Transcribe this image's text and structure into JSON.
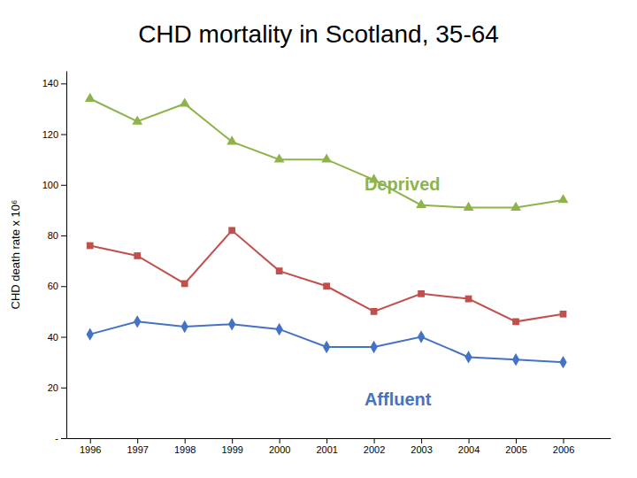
{
  "chart_data": {
    "type": "line",
    "title": "CHD mortality in Scotland, 35-64",
    "y_label": "CHD death rate x 10⁶",
    "x": [
      1996,
      1997,
      1998,
      1999,
      2000,
      2001,
      2002,
      2003,
      2004,
      2005,
      2006
    ],
    "series": [
      {
        "color": "#8DB34A",
        "marker": "triangle",
        "values": [
          134,
          125,
          132,
          117,
          110,
          110,
          102,
          92,
          91,
          91,
          94
        ]
      },
      {
        "color": "#C0504D",
        "marker": "square",
        "values": [
          76,
          72,
          61,
          82,
          66,
          60,
          50,
          57,
          55,
          46,
          49
        ]
      },
      {
        "color": "#4472C4",
        "marker": "diamond",
        "values": [
          41,
          46,
          44,
          45,
          43,
          36,
          36,
          40,
          32,
          31,
          30
        ]
      }
    ],
    "annotations": [
      {
        "text": "Deprived",
        "x": 2001.8,
        "y": 98,
        "color": "#8DB34A"
      },
      {
        "text": "Affluent",
        "x": 2001.8,
        "y": 13,
        "color": "#4472C4"
      }
    ],
    "xlim": [
      1995.5,
      2007.0
    ],
    "xticks": [
      1996,
      1997,
      1998,
      1999,
      2000,
      2001,
      2002,
      2003,
      2004,
      2005,
      2006
    ],
    "ylim": [
      0,
      145
    ],
    "yticks": [
      {
        "value": 0,
        "label": "-"
      },
      20,
      40,
      60,
      80,
      100,
      120,
      140
    ],
    "grid": false
  }
}
